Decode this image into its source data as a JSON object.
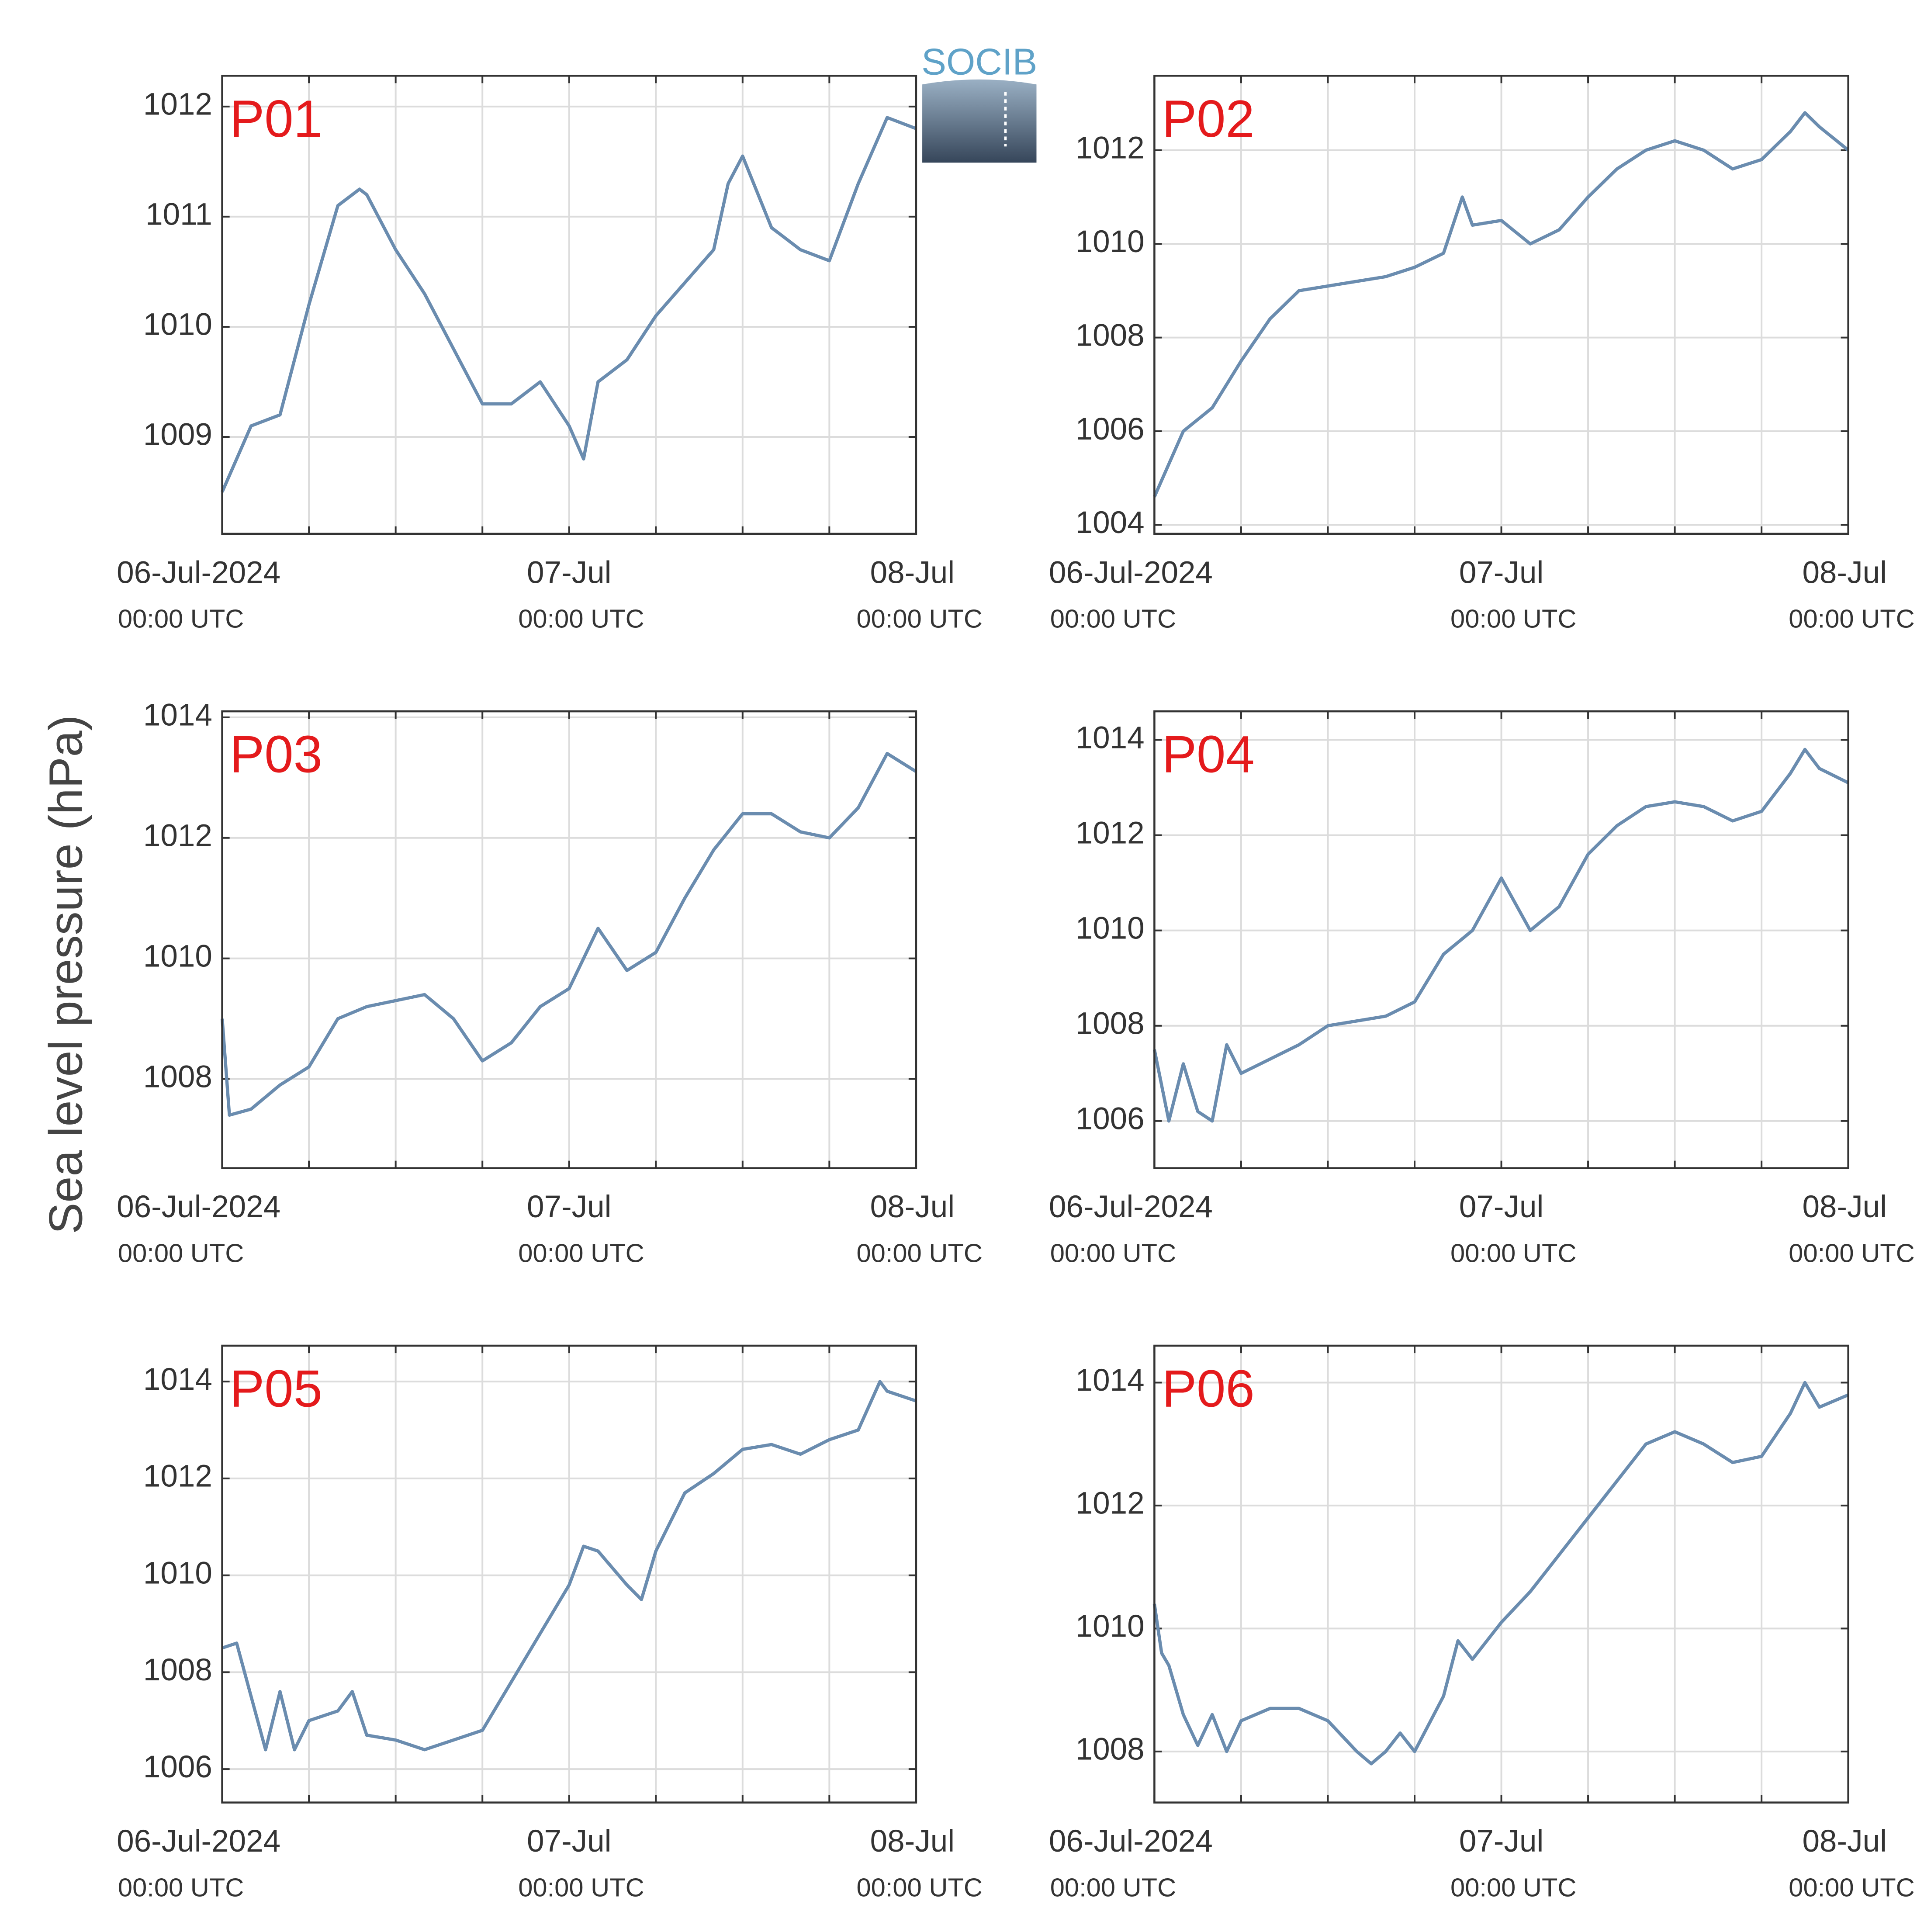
{
  "ylabel": "Sea level pressure (hPa)",
  "logo": "SOCIB",
  "chart_data": [
    {
      "type": "line",
      "label": "P01",
      "color": "#6a8caf",
      "grid": true,
      "x": [
        0,
        2,
        4,
        6,
        8,
        9.5,
        10,
        12,
        14,
        16,
        18,
        20,
        22,
        24,
        25,
        26,
        28,
        30,
        32,
        34,
        35,
        36,
        38,
        40,
        42,
        44,
        46,
        48
      ],
      "values": [
        1008.5,
        1009.1,
        1009.2,
        1010.2,
        1011.1,
        1011.25,
        1011.2,
        1010.7,
        1010.3,
        1009.8,
        1009.3,
        1009.3,
        1009.5,
        1009.1,
        1008.8,
        1009.5,
        1009.7,
        1010.1,
        1010.4,
        1010.7,
        1011.3,
        1011.55,
        1010.9,
        1010.7,
        1010.6,
        1011.3,
        1011.9,
        1011.8
      ],
      "xlim": [
        0,
        48
      ],
      "ylim": [
        1008.12,
        1012.28
      ],
      "yticks": [
        1009,
        1010,
        1011,
        1012
      ],
      "xticks": [
        {
          "value": 0,
          "label": "06-Jul-2024",
          "sublabel": "00:00 UTC"
        },
        {
          "value": 24,
          "label": "07-Jul",
          "sublabel": "00:00 UTC"
        },
        {
          "value": 48,
          "label": "08-Jul",
          "sublabel": "00:00 UTC"
        }
      ],
      "xminor": [
        6,
        12,
        18,
        30,
        36,
        42
      ]
    },
    {
      "type": "line",
      "label": "P02",
      "color": "#6a8caf",
      "grid": true,
      "x": [
        0,
        2,
        4,
        6,
        8,
        10,
        12,
        14,
        16,
        18,
        20,
        21.3,
        22,
        24,
        26,
        28,
        30,
        32,
        34,
        36,
        38,
        40,
        42,
        44,
        45,
        46,
        48
      ],
      "values": [
        1004.6,
        1006.0,
        1006.5,
        1007.5,
        1008.4,
        1009.0,
        1009.1,
        1009.2,
        1009.3,
        1009.5,
        1009.8,
        1011.0,
        1010.4,
        1010.5,
        1010.0,
        1010.3,
        1011.0,
        1011.6,
        1012.0,
        1012.2,
        1012.0,
        1011.6,
        1011.8,
        1012.4,
        1012.8,
        1012.5,
        1012.0
      ],
      "xlim": [
        0,
        48
      ],
      "ylim": [
        1003.81,
        1013.59
      ],
      "yticks": [
        1004,
        1006,
        1008,
        1010,
        1012
      ],
      "xticks": [
        {
          "value": 0,
          "label": "06-Jul-2024",
          "sublabel": "00:00 UTC"
        },
        {
          "value": 24,
          "label": "07-Jul",
          "sublabel": "00:00 UTC"
        },
        {
          "value": 48,
          "label": "08-Jul",
          "sublabel": "00:00 UTC"
        }
      ],
      "xminor": [
        6,
        12,
        18,
        30,
        36,
        42
      ]
    },
    {
      "type": "line",
      "label": "P03",
      "color": "#6a8caf",
      "grid": true,
      "x": [
        0,
        0.5,
        2,
        4,
        6,
        8,
        10,
        12,
        14,
        16,
        18,
        20,
        22,
        24,
        26,
        28,
        30,
        32,
        34,
        36,
        38,
        40,
        42,
        44,
        46,
        48
      ],
      "values": [
        1009.0,
        1007.4,
        1007.5,
        1007.9,
        1008.2,
        1009.0,
        1009.2,
        1009.3,
        1009.4,
        1009.0,
        1008.3,
        1008.6,
        1009.2,
        1009.5,
        1010.5,
        1009.8,
        1010.1,
        1011.0,
        1011.8,
        1012.4,
        1012.4,
        1012.1,
        1012.0,
        1012.5,
        1013.4,
        1013.1
      ],
      "xlim": [
        0,
        48
      ],
      "ylim": [
        1006.52,
        1014.1
      ],
      "yticks": [
        1008,
        1010,
        1012,
        1014
      ],
      "xticks": [
        {
          "value": 0,
          "label": "06-Jul-2024",
          "sublabel": "00:00 UTC"
        },
        {
          "value": 24,
          "label": "07-Jul",
          "sublabel": "00:00 UTC"
        },
        {
          "value": 48,
          "label": "08-Jul",
          "sublabel": "00:00 UTC"
        }
      ],
      "xminor": [
        6,
        12,
        18,
        30,
        36,
        42
      ]
    },
    {
      "type": "line",
      "label": "P04",
      "color": "#6a8caf",
      "grid": true,
      "x": [
        0,
        1,
        2,
        3,
        4,
        5,
        6,
        8,
        10,
        12,
        14,
        16,
        18,
        20,
        22,
        24,
        26,
        28,
        30,
        32,
        34,
        36,
        38,
        40,
        42,
        44,
        45,
        46,
        48
      ],
      "values": [
        1007.5,
        1006.0,
        1007.2,
        1006.2,
        1006.0,
        1007.6,
        1007.0,
        1007.3,
        1007.6,
        1008.0,
        1008.1,
        1008.2,
        1008.5,
        1009.5,
        1010.0,
        1011.1,
        1010.0,
        1010.5,
        1011.6,
        1012.2,
        1012.6,
        1012.7,
        1012.6,
        1012.3,
        1012.5,
        1013.3,
        1013.8,
        1013.4,
        1013.1
      ],
      "xlim": [
        0,
        48
      ],
      "ylim": [
        1005.01,
        1014.6
      ],
      "yticks": [
        1006,
        1008,
        1010,
        1012,
        1014
      ],
      "xticks": [
        {
          "value": 0,
          "label": "06-Jul-2024",
          "sublabel": "00:00 UTC"
        },
        {
          "value": 24,
          "label": "07-Jul",
          "sublabel": "00:00 UTC"
        },
        {
          "value": 48,
          "label": "08-Jul",
          "sublabel": "00:00 UTC"
        }
      ],
      "xminor": [
        6,
        12,
        18,
        30,
        36,
        42
      ]
    },
    {
      "type": "line",
      "label": "P05",
      "color": "#6a8caf",
      "grid": true,
      "x": [
        0,
        1,
        2,
        3,
        4,
        5,
        6,
        8,
        9,
        10,
        12,
        14,
        16,
        18,
        20,
        22,
        24,
        25,
        26,
        28,
        29,
        30,
        32,
        34,
        36,
        38,
        40,
        42,
        44,
        45.5,
        46,
        48
      ],
      "values": [
        1008.5,
        1008.6,
        1007.5,
        1006.4,
        1007.6,
        1006.4,
        1007.0,
        1007.2,
        1007.6,
        1006.7,
        1006.6,
        1006.4,
        1006.6,
        1006.8,
        1007.8,
        1008.8,
        1009.8,
        1010.6,
        1010.5,
        1009.8,
        1009.5,
        1010.5,
        1011.7,
        1012.1,
        1012.6,
        1012.7,
        1012.5,
        1012.8,
        1013.0,
        1014.0,
        1013.8,
        1013.6
      ],
      "xlim": [
        0,
        48
      ],
      "ylim": [
        1005.31,
        1014.74
      ],
      "yticks": [
        1006,
        1008,
        1010,
        1012,
        1014
      ],
      "xticks": [
        {
          "value": 0,
          "label": "06-Jul-2024",
          "sublabel": "00:00 UTC"
        },
        {
          "value": 24,
          "label": "07-Jul",
          "sublabel": "00:00 UTC"
        },
        {
          "value": 48,
          "label": "08-Jul",
          "sublabel": "00:00 UTC"
        }
      ],
      "xminor": [
        6,
        12,
        18,
        30,
        36,
        42
      ]
    },
    {
      "type": "line",
      "label": "P06",
      "color": "#6a8caf",
      "grid": true,
      "x": [
        0,
        0.5,
        1,
        2,
        3,
        4,
        5,
        6,
        8,
        10,
        12,
        14,
        15,
        16,
        17,
        18,
        20,
        21,
        22,
        24,
        26,
        28,
        30,
        32,
        34,
        36,
        38,
        40,
        42,
        44,
        45,
        46,
        48
      ],
      "values": [
        1010.4,
        1009.6,
        1009.4,
        1008.6,
        1008.1,
        1008.6,
        1008.0,
        1008.5,
        1008.7,
        1008.7,
        1008.5,
        1008.0,
        1007.8,
        1008.0,
        1008.3,
        1008.0,
        1008.9,
        1009.8,
        1009.5,
        1010.1,
        1010.6,
        1011.2,
        1011.8,
        1012.4,
        1013.0,
        1013.2,
        1013.0,
        1012.7,
        1012.8,
        1013.5,
        1014.0,
        1013.6,
        1013.8
      ],
      "xlim": [
        0,
        48
      ],
      "ylim": [
        1007.17,
        1014.6
      ],
      "yticks": [
        1008,
        1010,
        1012,
        1014
      ],
      "xticks": [
        {
          "value": 0,
          "label": "06-Jul-2024",
          "sublabel": "00:00 UTC"
        },
        {
          "value": 24,
          "label": "07-Jul",
          "sublabel": "00:00 UTC"
        },
        {
          "value": 48,
          "label": "08-Jul",
          "sublabel": "00:00 UTC"
        }
      ],
      "xminor": [
        6,
        12,
        18,
        30,
        36,
        42
      ]
    }
  ]
}
